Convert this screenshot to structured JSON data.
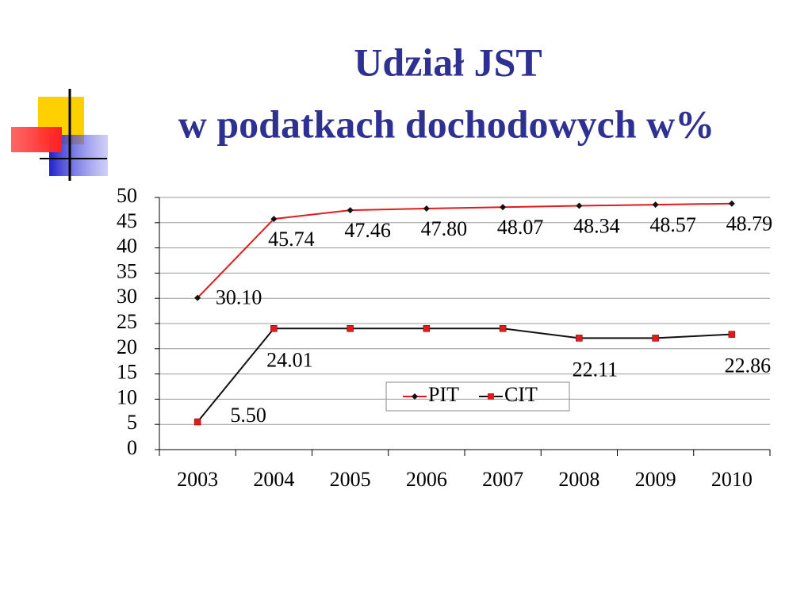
{
  "chart_data": {
    "type": "line",
    "title": "Udział  JST",
    "subtitle": "w podatkach dochodowych w%",
    "categories": [
      "2003",
      "2004",
      "2005",
      "2006",
      "2007",
      "2008",
      "2009",
      "2010"
    ],
    "series": [
      {
        "name": "PIT",
        "color": "#e31a1c",
        "marker_color": "#111111",
        "marker": "diamond",
        "values": [
          30.1,
          45.74,
          47.46,
          47.8,
          48.07,
          48.34,
          48.57,
          48.79
        ],
        "value_labels": [
          "30.10",
          "45.74",
          "47.46",
          "47.80",
          "48.07",
          "48.34",
          "48.57",
          "48.79"
        ]
      },
      {
        "name": "CIT",
        "color": "#111111",
        "marker_color": "#e31a1c",
        "marker": "square",
        "values": [
          5.5,
          24.01,
          24.01,
          24.01,
          24.01,
          22.11,
          22.11,
          22.86
        ],
        "value_labels": [
          "5.50",
          "24.01",
          null,
          null,
          null,
          "22.11",
          null,
          "22.86"
        ]
      }
    ],
    "ylim": [
      0,
      50
    ],
    "yticks": [
      0,
      5,
      10,
      15,
      20,
      25,
      30,
      35,
      40,
      45,
      50
    ],
    "grid": true,
    "legend": "inside-bottom"
  }
}
